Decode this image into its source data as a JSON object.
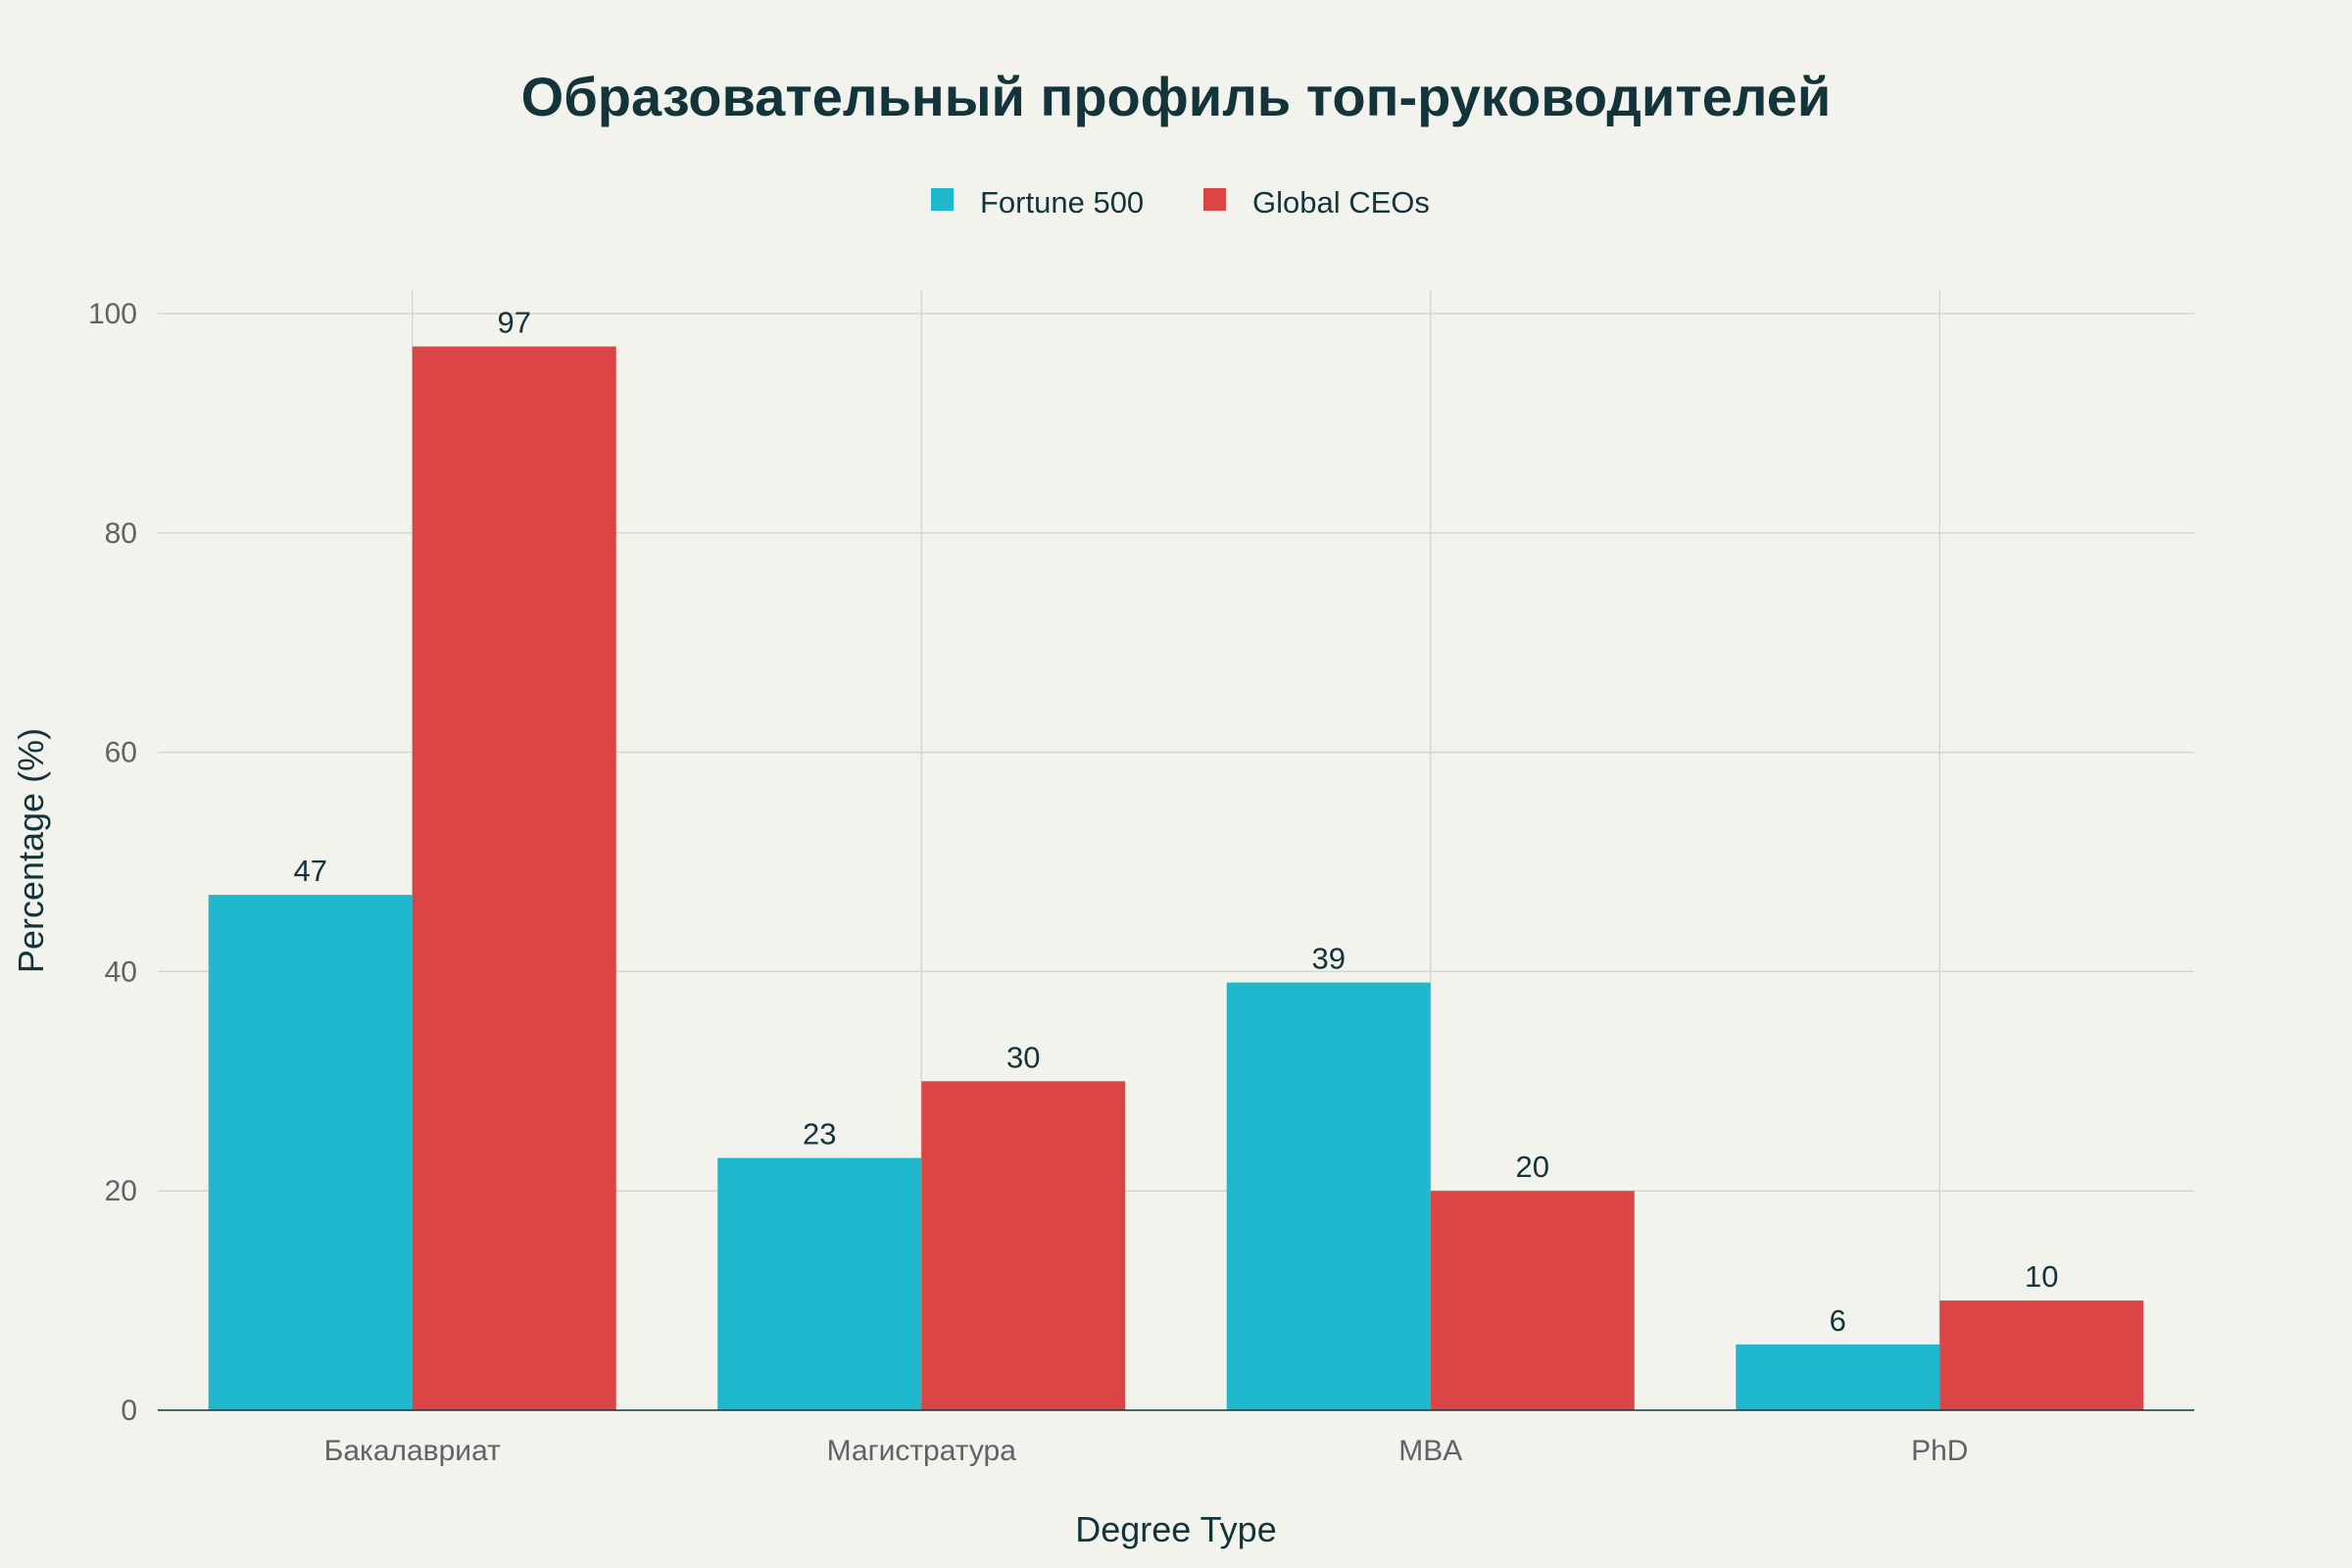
{
  "chart_data": {
    "type": "bar",
    "title": "Образовательный профиль топ-руководителей",
    "xlabel": "Degree Type",
    "ylabel": "Percentage (%)",
    "categories": [
      "Бакалавриат",
      "Магистратура",
      "MBA",
      "PhD"
    ],
    "series": [
      {
        "name": "Fortune 500",
        "values": [
          47,
          23,
          39,
          6
        ],
        "color": "#1fb8cd"
      },
      {
        "name": "Global CEOs",
        "values": [
          97,
          30,
          20,
          10
        ],
        "color": "#db4545"
      }
    ],
    "ylim": [
      0,
      100
    ],
    "yticks": [
      0,
      20,
      40,
      60,
      80,
      100
    ],
    "grid": true,
    "legend_position": "top-center",
    "data_labels": true
  }
}
